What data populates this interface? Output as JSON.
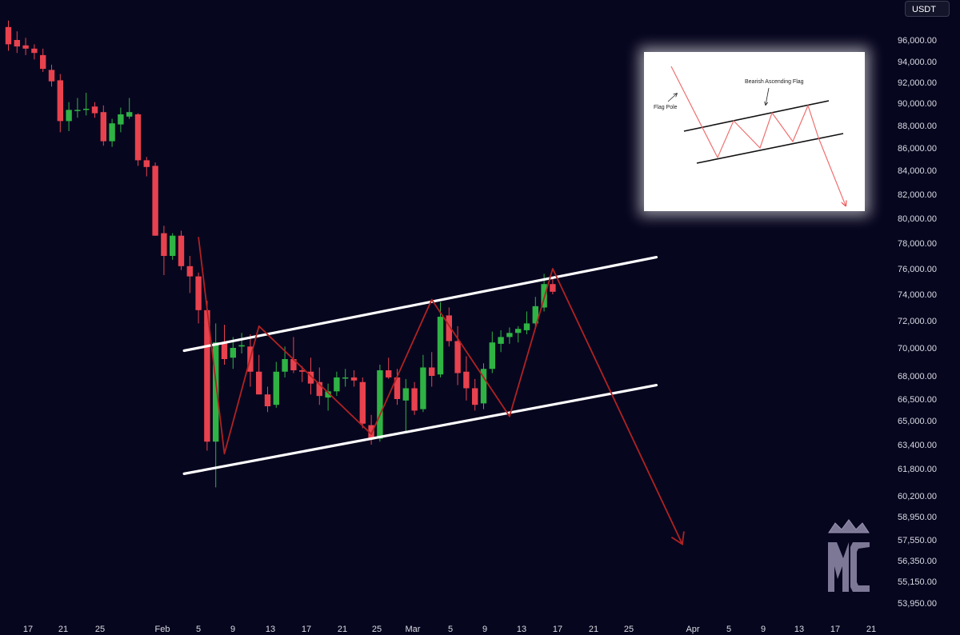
{
  "currency_label": "USDT",
  "chart_data": {
    "type": "candlestick",
    "y_ticks": [
      "96,000.00",
      "94,000.00",
      "92,000.00",
      "90,000.00",
      "88,000.00",
      "86,000.00",
      "84,000.00",
      "82,000.00",
      "80,000.00",
      "78,000.00",
      "76,000.00",
      "74,000.00",
      "72,000.00",
      "70,000.00",
      "68,000.00",
      "66,500.00",
      "65,000.00",
      "63,400.00",
      "61,800.00",
      "60,200.00",
      "58,950.00",
      "57,550.00",
      "56,350.00",
      "55,150.00",
      "53,950.00"
    ],
    "x_ticks": [
      "17",
      "21",
      "25",
      "Feb",
      "5",
      "9",
      "13",
      "17",
      "21",
      "25",
      "Mar",
      "5",
      "9",
      "13",
      "17",
      "21",
      "25",
      "Apr",
      "5",
      "9",
      "13",
      "17",
      "21"
    ],
    "up_color": "#2fb344",
    "down_color": "#e8424e",
    "candles": [
      {
        "o": 97200,
        "h": 97800,
        "l": 95000,
        "c": 95600
      },
      {
        "o": 96000,
        "h": 96800,
        "l": 94800,
        "c": 95400
      },
      {
        "o": 95500,
        "h": 96200,
        "l": 94600,
        "c": 95200
      },
      {
        "o": 95200,
        "h": 95600,
        "l": 94200,
        "c": 94800
      },
      {
        "o": 94600,
        "h": 95200,
        "l": 93000,
        "c": 93300
      },
      {
        "o": 93200,
        "h": 93700,
        "l": 91600,
        "c": 92100
      },
      {
        "o": 92200,
        "h": 92800,
        "l": 87400,
        "c": 88400
      },
      {
        "o": 88400,
        "h": 90100,
        "l": 87500,
        "c": 89400
      },
      {
        "o": 89400,
        "h": 90500,
        "l": 88700,
        "c": 89400
      },
      {
        "o": 89400,
        "h": 91000,
        "l": 88900,
        "c": 89500
      },
      {
        "o": 89700,
        "h": 90100,
        "l": 88700,
        "c": 89100
      },
      {
        "o": 89200,
        "h": 89800,
        "l": 86200,
        "c": 86600
      },
      {
        "o": 86600,
        "h": 88600,
        "l": 86100,
        "c": 88200
      },
      {
        "o": 88100,
        "h": 89600,
        "l": 87400,
        "c": 89000
      },
      {
        "o": 88800,
        "h": 90500,
        "l": 88600,
        "c": 89200
      },
      {
        "o": 89000,
        "h": 89100,
        "l": 84400,
        "c": 84900
      },
      {
        "o": 84900,
        "h": 85200,
        "l": 83500,
        "c": 84300
      },
      {
        "o": 84400,
        "h": 84700,
        "l": 78600,
        "c": 78600
      },
      {
        "o": 78800,
        "h": 79400,
        "l": 75500,
        "c": 77000
      },
      {
        "o": 77000,
        "h": 78800,
        "l": 76700,
        "c": 78600
      },
      {
        "o": 78600,
        "h": 79000,
        "l": 75900,
        "c": 76200
      },
      {
        "o": 76200,
        "h": 77000,
        "l": 74100,
        "c": 75400
      },
      {
        "o": 75400,
        "h": 75700,
        "l": 71800,
        "c": 72800
      },
      {
        "o": 72800,
        "h": 73500,
        "l": 63000,
        "c": 63600
      },
      {
        "o": 63600,
        "h": 71800,
        "l": 60700,
        "c": 70400
      },
      {
        "o": 70400,
        "h": 71700,
        "l": 68800,
        "c": 69200
      },
      {
        "o": 69300,
        "h": 70800,
        "l": 68500,
        "c": 70000
      },
      {
        "o": 70100,
        "h": 71100,
        "l": 69600,
        "c": 70200
      },
      {
        "o": 70100,
        "h": 71000,
        "l": 67300,
        "c": 68300
      },
      {
        "o": 68300,
        "h": 69500,
        "l": 66800,
        "c": 66800
      },
      {
        "o": 66800,
        "h": 67300,
        "l": 65600,
        "c": 66000
      },
      {
        "o": 66100,
        "h": 69000,
        "l": 65900,
        "c": 68300
      },
      {
        "o": 68300,
        "h": 70100,
        "l": 67900,
        "c": 69200
      },
      {
        "o": 69200,
        "h": 70800,
        "l": 68200,
        "c": 68400
      },
      {
        "o": 68400,
        "h": 68700,
        "l": 67600,
        "c": 68300
      },
      {
        "o": 68300,
        "h": 69300,
        "l": 66800,
        "c": 67500
      },
      {
        "o": 67600,
        "h": 68600,
        "l": 66100,
        "c": 66700
      },
      {
        "o": 66600,
        "h": 67500,
        "l": 65700,
        "c": 67000
      },
      {
        "o": 67000,
        "h": 68300,
        "l": 66700,
        "c": 67900
      },
      {
        "o": 67900,
        "h": 68500,
        "l": 67300,
        "c": 67900
      },
      {
        "o": 67900,
        "h": 68400,
        "l": 67300,
        "c": 67700
      },
      {
        "o": 67600,
        "h": 67900,
        "l": 64500,
        "c": 64800
      },
      {
        "o": 64700,
        "h": 65400,
        "l": 63400,
        "c": 63800
      },
      {
        "o": 63800,
        "h": 68800,
        "l": 63600,
        "c": 68400
      },
      {
        "o": 68400,
        "h": 69300,
        "l": 67800,
        "c": 67900
      },
      {
        "o": 67900,
        "h": 68500,
        "l": 66100,
        "c": 66500
      },
      {
        "o": 66400,
        "h": 67800,
        "l": 64300,
        "c": 67200
      },
      {
        "o": 67200,
        "h": 67600,
        "l": 65400,
        "c": 65700
      },
      {
        "o": 65800,
        "h": 69500,
        "l": 65600,
        "c": 68600
      },
      {
        "o": 68600,
        "h": 69700,
        "l": 67300,
        "c": 68000
      },
      {
        "o": 68100,
        "h": 73400,
        "l": 67900,
        "c": 72300
      },
      {
        "o": 72400,
        "h": 73000,
        "l": 70100,
        "c": 70500
      },
      {
        "o": 70500,
        "h": 71600,
        "l": 67400,
        "c": 68200
      },
      {
        "o": 68300,
        "h": 69400,
        "l": 66400,
        "c": 67200
      },
      {
        "o": 67200,
        "h": 67800,
        "l": 65700,
        "c": 66100
      },
      {
        "o": 66200,
        "h": 68900,
        "l": 65800,
        "c": 68500
      },
      {
        "o": 68500,
        "h": 71200,
        "l": 68200,
        "c": 70400
      },
      {
        "o": 70300,
        "h": 71300,
        "l": 69700,
        "c": 70800
      },
      {
        "o": 70800,
        "h": 71500,
        "l": 70300,
        "c": 71100
      },
      {
        "o": 71100,
        "h": 71600,
        "l": 70400,
        "c": 71400
      },
      {
        "o": 71300,
        "h": 72700,
        "l": 71000,
        "c": 71800
      },
      {
        "o": 71800,
        "h": 73800,
        "l": 71400,
        "c": 73100
      },
      {
        "o": 73000,
        "h": 75600,
        "l": 72700,
        "c": 74800
      },
      {
        "o": 74800,
        "h": 75300,
        "l": 74000,
        "c": 74200
      }
    ],
    "channel_upper": {
      "from": {
        "index": 22,
        "price": 69800
      },
      "to": {
        "index": 75,
        "price": 76900
      }
    },
    "channel_lower": {
      "from": {
        "index": 22,
        "price": 61500
      },
      "to": {
        "index": 75,
        "price": 67400
      }
    },
    "projection_path": [
      {
        "index": 22,
        "price": 78500
      },
      {
        "index": 25,
        "price": 62800
      },
      {
        "index": 29,
        "price": 71600
      },
      {
        "index": 42,
        "price": 64100
      },
      {
        "index": 49,
        "price": 73600
      },
      {
        "index": 58,
        "price": 65300
      },
      {
        "index": 63,
        "price": 76000
      },
      {
        "index": 78,
        "price": 57300
      }
    ]
  },
  "inset": {
    "title": "Bearish Ascending Flag",
    "pole_label": "Flag Pole"
  }
}
